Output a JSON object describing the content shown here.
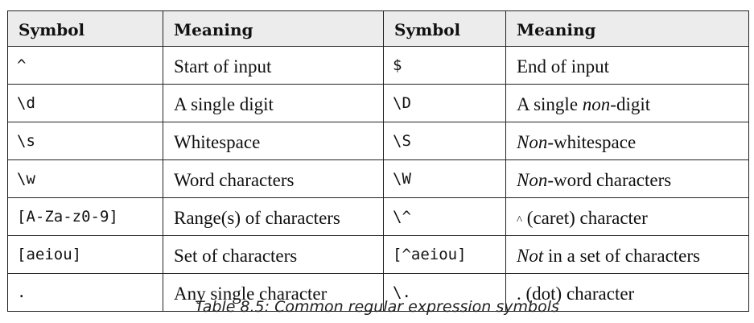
{
  "table": {
    "headers": [
      "Symbol",
      "Meaning",
      "Symbol",
      "Meaning"
    ],
    "rows": [
      {
        "symbol_left": "^",
        "meaning_left": "Start of input",
        "symbol_right": "$",
        "meaning_right": {
          "pre": "",
          "italic": "",
          "post": "End of input"
        }
      },
      {
        "symbol_left": "\\d",
        "meaning_left": "A single digit",
        "symbol_right": "\\D",
        "meaning_right": {
          "pre": "A single ",
          "italic": "non",
          "post": "-digit"
        }
      },
      {
        "symbol_left": "\\s",
        "meaning_left": "Whitespace",
        "symbol_right": "\\S",
        "meaning_right": {
          "pre": "",
          "italic": "Non",
          "post": "-whitespace"
        }
      },
      {
        "symbol_left": "\\w",
        "meaning_left": "Word characters",
        "symbol_right": "\\W",
        "meaning_right": {
          "pre": "",
          "italic": "Non",
          "post": "-word characters"
        }
      },
      {
        "symbol_left": "[A-Za-z0-9]",
        "meaning_left": "Range(s) of characters",
        "symbol_right": "\\^",
        "meaning_right": {
          "small": "^",
          "post": " (caret) character"
        }
      },
      {
        "symbol_left": "[aeiou]",
        "meaning_left": "Set of characters",
        "symbol_right": "[^aeiou]",
        "meaning_right": {
          "pre": "",
          "italic": "Not",
          "post": " in a set of characters"
        }
      },
      {
        "symbol_left": ".",
        "meaning_left": "Any single character",
        "symbol_right": "\\.",
        "meaning_right": {
          "pre": "",
          "italic": "",
          "post": ". (dot) character"
        }
      }
    ]
  },
  "caption": "Table 8.5: Common regular expression symbols"
}
